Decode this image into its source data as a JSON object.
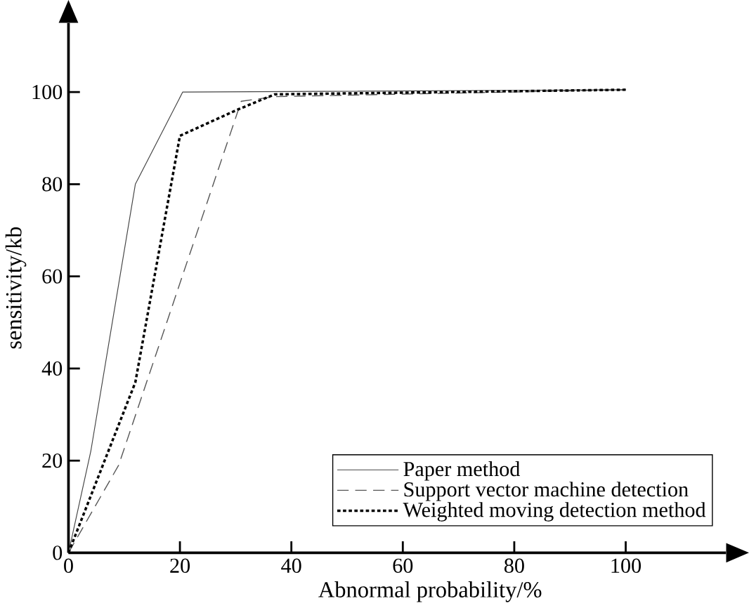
{
  "chart_data": {
    "type": "line",
    "xlabel": "Abnormal probability/%",
    "ylabel": "sensitivity/kb",
    "xlim": [
      0,
      118
    ],
    "ylim": [
      0,
      115
    ],
    "xticks": [
      0,
      20,
      40,
      60,
      80,
      100
    ],
    "yticks": [
      0,
      20,
      40,
      60,
      80,
      100
    ],
    "legend": "bottom right",
    "grid": false,
    "series": [
      {
        "name": "Paper method",
        "color": "#444444",
        "line_style": "solid",
        "x": [
          0,
          4,
          12,
          20.5,
          100
        ],
        "values": [
          0,
          22,
          80,
          100,
          100.5
        ]
      },
      {
        "name": "Support vector machine detection",
        "color": "#555555",
        "line_style": "dashed",
        "x": [
          0,
          9,
          31,
          37,
          100
        ],
        "values": [
          0,
          19,
          98,
          99,
          100.5
        ]
      },
      {
        "name": "Weighted moving detection method",
        "color": "#000000",
        "line_style": "dotted",
        "x": [
          0,
          12,
          20,
          30,
          37,
          100
        ],
        "values": [
          0,
          37,
          90.5,
          96,
          99.5,
          100.5
        ]
      }
    ]
  }
}
